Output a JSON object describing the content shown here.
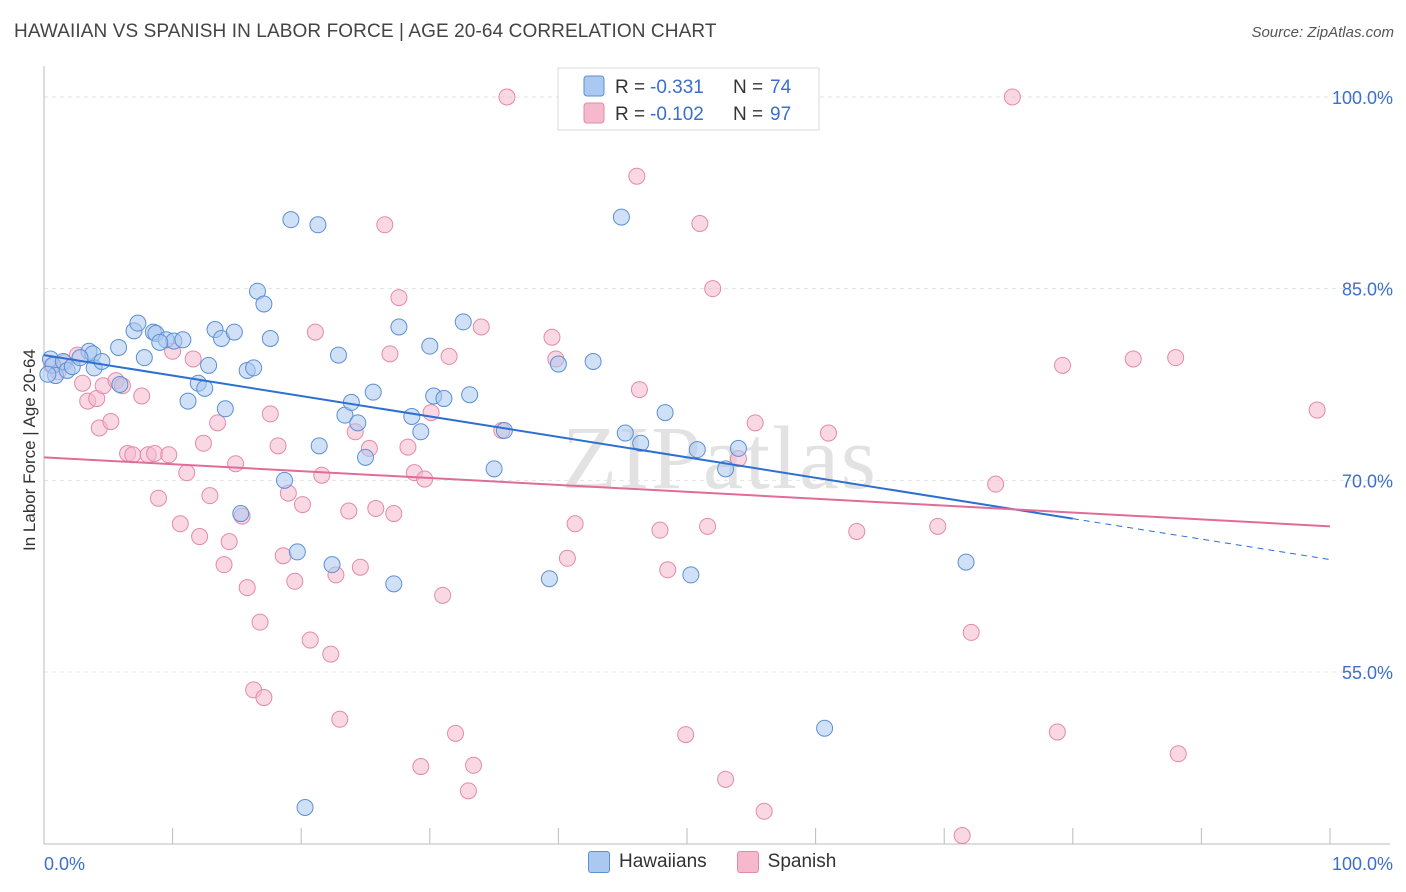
{
  "title": "HAWAIIAN VS SPANISH IN LABOR FORCE | AGE 20-64 CORRELATION CHART",
  "source": "Source: ZipAtlas.com",
  "watermark": "ZIPatlas",
  "legend": {
    "rows": [
      {
        "r_label": "R =",
        "r_value": "-0.331",
        "n_label": "N =",
        "n_value": "74"
      },
      {
        "r_label": "R =",
        "r_value": "-0.102",
        "n_label": "N =",
        "n_value": "97"
      }
    ]
  },
  "bottom_legend": [
    {
      "name": "Hawaiians"
    },
    {
      "name": "Spanish"
    }
  ],
  "colors": {
    "hawaiian_fill": "#aac8f0",
    "hawaiian_stroke": "#5b8fd6",
    "hawaiian_line": "#2e6fd2",
    "spanish_fill": "#f5b8cc",
    "spanish_stroke": "#e48aa8",
    "spanish_line": "#e06d97",
    "value_text": "#3b6fcf",
    "grid": "#e3e3e3"
  },
  "chart_data": {
    "type": "scatter",
    "title": "HAWAIIAN VS SPANISH IN LABOR FORCE | AGE 20-64 CORRELATION CHART",
    "xlabel": "",
    "ylabel": "In Labor Force | Age 20-64",
    "xlim": [
      0,
      100
    ],
    "ylim": [
      42,
      100
    ],
    "x_tick_labels": [
      "0.0%",
      "100.0%"
    ],
    "y_ticks": [
      55,
      70,
      85,
      100
    ],
    "y_tick_labels": [
      "55.0%",
      "70.0%",
      "85.0%",
      "100.0%"
    ],
    "grid": true,
    "legend_position": "top-center",
    "series": [
      {
        "name": "Hawaiians",
        "points": [
          [
            0.5,
            79.5
          ],
          [
            0.7,
            79.0
          ],
          [
            0.9,
            78.2
          ],
          [
            1.5,
            79.3
          ],
          [
            1.8,
            78.6
          ],
          [
            2.2,
            78.9
          ],
          [
            3.5,
            80.1
          ],
          [
            3.8,
            79.9
          ],
          [
            3.9,
            78.8
          ],
          [
            4.5,
            79.3
          ],
          [
            5.8,
            80.4
          ],
          [
            5.9,
            77.5
          ],
          [
            7.0,
            81.7
          ],
          [
            7.3,
            82.3
          ],
          [
            7.8,
            79.6
          ],
          [
            8.5,
            81.6
          ],
          [
            8.7,
            81.5
          ],
          [
            9.5,
            81.0
          ],
          [
            10.1,
            80.9
          ],
          [
            10.8,
            81.0
          ],
          [
            11.2,
            76.2
          ],
          [
            12.0,
            77.6
          ],
          [
            12.5,
            77.2
          ],
          [
            12.8,
            79.0
          ],
          [
            13.3,
            81.8
          ],
          [
            13.8,
            81.1
          ],
          [
            14.1,
            75.6
          ],
          [
            14.8,
            81.6
          ],
          [
            15.3,
            67.4
          ],
          [
            15.8,
            78.6
          ],
          [
            16.3,
            78.8
          ],
          [
            16.6,
            84.8
          ],
          [
            17.1,
            83.8
          ],
          [
            17.6,
            81.1
          ],
          [
            18.7,
            70.0
          ],
          [
            19.2,
            90.4
          ],
          [
            19.7,
            64.4
          ],
          [
            20.3,
            44.4
          ],
          [
            21.3,
            90.0
          ],
          [
            21.4,
            72.7
          ],
          [
            22.4,
            63.4
          ],
          [
            22.9,
            79.8
          ],
          [
            23.4,
            75.1
          ],
          [
            23.9,
            76.1
          ],
          [
            24.4,
            74.5
          ],
          [
            25.0,
            71.8
          ],
          [
            25.6,
            76.9
          ],
          [
            27.2,
            61.9
          ],
          [
            27.6,
            82.0
          ],
          [
            28.6,
            75.0
          ],
          [
            29.3,
            73.8
          ],
          [
            30.0,
            80.5
          ],
          [
            30.3,
            76.6
          ],
          [
            31.1,
            76.4
          ],
          [
            32.6,
            82.4
          ],
          [
            33.1,
            76.7
          ],
          [
            35.0,
            70.9
          ],
          [
            35.8,
            73.9
          ],
          [
            39.3,
            62.3
          ],
          [
            40.0,
            79.1
          ],
          [
            42.7,
            79.3
          ],
          [
            44.9,
            90.6
          ],
          [
            45.2,
            73.7
          ],
          [
            46.4,
            72.9
          ],
          [
            48.3,
            75.3
          ],
          [
            50.3,
            62.6
          ],
          [
            50.8,
            72.4
          ],
          [
            53.0,
            70.9
          ],
          [
            54.0,
            72.5
          ],
          [
            60.7,
            50.6
          ],
          [
            71.7,
            63.6
          ],
          [
            0.3,
            78.3
          ],
          [
            2.8,
            79.6
          ],
          [
            9.0,
            80.8
          ]
        ]
      },
      {
        "name": "Spanish",
        "points": [
          [
            0.6,
            79.0
          ],
          [
            1.1,
            78.5
          ],
          [
            1.6,
            79.2
          ],
          [
            2.6,
            79.8
          ],
          [
            3.0,
            77.6
          ],
          [
            3.4,
            76.2
          ],
          [
            4.1,
            76.4
          ],
          [
            4.3,
            74.1
          ],
          [
            4.6,
            77.4
          ],
          [
            5.2,
            74.6
          ],
          [
            5.6,
            77.8
          ],
          [
            6.1,
            77.4
          ],
          [
            6.5,
            72.1
          ],
          [
            6.9,
            72.0
          ],
          [
            7.6,
            76.6
          ],
          [
            8.1,
            72.0
          ],
          [
            8.6,
            72.1
          ],
          [
            8.9,
            68.6
          ],
          [
            9.7,
            72.0
          ],
          [
            10.0,
            80.1
          ],
          [
            10.6,
            66.6
          ],
          [
            11.1,
            70.6
          ],
          [
            11.6,
            79.5
          ],
          [
            12.1,
            65.6
          ],
          [
            12.4,
            72.9
          ],
          [
            12.9,
            68.8
          ],
          [
            13.5,
            74.5
          ],
          [
            14.0,
            63.4
          ],
          [
            14.4,
            65.2
          ],
          [
            14.9,
            71.3
          ],
          [
            15.4,
            67.2
          ],
          [
            15.8,
            61.6
          ],
          [
            16.3,
            53.6
          ],
          [
            16.8,
            58.9
          ],
          [
            17.1,
            53.0
          ],
          [
            17.6,
            75.2
          ],
          [
            18.2,
            72.7
          ],
          [
            18.6,
            64.1
          ],
          [
            19.0,
            69.0
          ],
          [
            19.5,
            62.1
          ],
          [
            20.1,
            68.1
          ],
          [
            20.7,
            57.5
          ],
          [
            21.1,
            81.6
          ],
          [
            21.6,
            70.4
          ],
          [
            22.3,
            56.4
          ],
          [
            22.7,
            62.6
          ],
          [
            23.0,
            51.3
          ],
          [
            23.7,
            67.6
          ],
          [
            24.2,
            73.8
          ],
          [
            24.6,
            63.2
          ],
          [
            25.3,
            72.5
          ],
          [
            25.8,
            67.8
          ],
          [
            26.5,
            90.0
          ],
          [
            26.9,
            79.9
          ],
          [
            27.2,
            67.4
          ],
          [
            27.6,
            84.3
          ],
          [
            28.3,
            72.6
          ],
          [
            28.8,
            70.6
          ],
          [
            29.3,
            47.6
          ],
          [
            29.6,
            70.1
          ],
          [
            30.1,
            75.3
          ],
          [
            31.0,
            61.0
          ],
          [
            31.5,
            79.7
          ],
          [
            32.0,
            50.2
          ],
          [
            33.0,
            45.7
          ],
          [
            33.4,
            47.7
          ],
          [
            34.0,
            82.0
          ],
          [
            35.6,
            73.9
          ],
          [
            36.0,
            100.0
          ],
          [
            39.5,
            81.2
          ],
          [
            39.8,
            79.5
          ],
          [
            40.7,
            63.9
          ],
          [
            41.3,
            66.6
          ],
          [
            43.2,
            100.0
          ],
          [
            46.1,
            93.8
          ],
          [
            46.3,
            77.1
          ],
          [
            47.9,
            66.1
          ],
          [
            48.5,
            63.0
          ],
          [
            49.9,
            50.1
          ],
          [
            51.0,
            90.1
          ],
          [
            51.6,
            66.4
          ],
          [
            52.0,
            85.0
          ],
          [
            53.0,
            46.6
          ],
          [
            54.0,
            71.7
          ],
          [
            55.3,
            74.5
          ],
          [
            56.0,
            44.1
          ],
          [
            61.0,
            73.7
          ],
          [
            63.2,
            66.0
          ],
          [
            69.5,
            66.4
          ],
          [
            71.4,
            42.2
          ],
          [
            72.1,
            58.1
          ],
          [
            74.0,
            69.7
          ],
          [
            75.3,
            100.0
          ],
          [
            78.8,
            50.3
          ],
          [
            79.2,
            79.0
          ],
          [
            84.7,
            79.5
          ],
          [
            88.0,
            79.6
          ],
          [
            88.2,
            48.6
          ],
          [
            99.0,
            75.5
          ]
        ]
      }
    ],
    "trend_lines": [
      {
        "name": "Hawaiians",
        "x_solid": [
          0,
          80
        ],
        "x_dashed": [
          80,
          100
        ],
        "y_at_0": 79.8,
        "y_at_100": 63.8
      },
      {
        "name": "Spanish",
        "x_solid": [
          0,
          100
        ],
        "y_at_0": 71.8,
        "y_at_100": 66.4
      }
    ]
  }
}
